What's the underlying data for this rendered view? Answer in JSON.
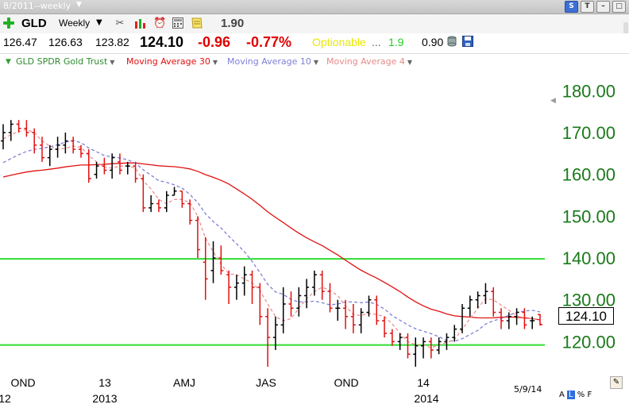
{
  "window": {
    "title": "8/2011--weekly"
  },
  "toolbar": {
    "symbol": "GLD",
    "period": "Weekly",
    "figure": "1.90",
    "icons": [
      "add-icon",
      "scissors-icon",
      "bar-chart-icon",
      "alarm-icon",
      "calculator-icon",
      "note-icon"
    ]
  },
  "window_buttons": {
    "s": "S",
    "t": "T"
  },
  "quote": {
    "open": "126.47",
    "high": "126.63",
    "low": "123.82",
    "last": "124.10",
    "change": "-0.96",
    "change_pct": "-0.77%",
    "optionable": "Optionable",
    "dots": "...",
    "green_value": "1.9",
    "value2": "0.90"
  },
  "legend": {
    "items": [
      {
        "label": "GLD SPDR Gold Trust",
        "color": "#2e8b2e"
      },
      {
        "label": "Moving Average 30",
        "color": "#e01010"
      },
      {
        "label": "Moving Average 10",
        "color": "#7f7fd8"
      },
      {
        "label": "Moving Average 4",
        "color": "#e88a8a"
      }
    ]
  },
  "price_box": "124.10",
  "date_label": "5/9/14",
  "corner_labels": {
    "a": "A",
    "l": "L",
    "pct": "%",
    "f": "F"
  },
  "colors": {
    "up_bar": "#000000",
    "down_bar": "#e01010",
    "ma30": "#e01010",
    "ma10": "#7f7fd8",
    "ma4": "#ee9090",
    "hline": "#33dd33",
    "axis_text": "#1a7a1a"
  },
  "chart_data": {
    "type": "bar",
    "ylim": [
      114,
      185
    ],
    "y_ticks": [
      120,
      130,
      140,
      150,
      160,
      170,
      180
    ],
    "y_tick_labels": [
      "120.00",
      "130.00",
      "140.00",
      "150.00",
      "160.00",
      "170.00",
      "180.00"
    ],
    "x_range": [
      -1,
      86
    ],
    "x_ticks_month": [
      {
        "x": 6,
        "label": "OND"
      },
      {
        "x": 29,
        "label": "13"
      },
      {
        "x": 51,
        "label": "AMJ"
      },
      {
        "x": 73,
        "label": "JAS"
      },
      {
        "x": 95,
        "label": "OND"
      },
      {
        "x": 117,
        "label": "14"
      },
      {
        "x": 139,
        "label": ""
      }
    ],
    "x_ticks_year": [
      {
        "x": 0,
        "label": "12"
      },
      {
        "x": 29,
        "label": "2013"
      },
      {
        "x": 117,
        "label": "2014"
      }
    ],
    "hlines": [
      139.8,
      119.2
    ],
    "bars": [
      [
        0,
        168,
        172,
        166,
        170
      ],
      [
        1,
        170,
        173,
        168,
        172
      ],
      [
        2,
        172,
        173,
        170,
        171
      ],
      [
        3,
        171,
        173,
        169,
        170
      ],
      [
        4,
        170,
        171,
        165,
        167
      ],
      [
        5,
        167,
        169,
        163,
        164
      ],
      [
        6,
        164,
        167,
        162,
        166
      ],
      [
        7,
        166,
        169,
        164,
        167
      ],
      [
        8,
        167,
        170,
        165,
        168
      ],
      [
        9,
        168,
        169,
        165,
        166
      ],
      [
        10,
        166,
        167,
        164,
        165
      ],
      [
        11,
        165,
        166,
        158,
        159
      ],
      [
        12,
        160,
        163,
        159,
        162
      ],
      [
        13,
        162,
        164,
        160,
        161
      ],
      [
        14,
        161,
        165,
        159,
        164
      ],
      [
        15,
        163,
        165,
        160,
        161
      ],
      [
        16,
        162,
        163,
        160,
        162
      ],
      [
        17,
        162,
        163,
        158,
        159
      ],
      [
        18,
        159,
        160,
        151,
        152
      ],
      [
        19,
        152,
        155,
        151,
        153
      ],
      [
        20,
        153,
        154,
        151,
        152
      ],
      [
        21,
        152,
        156,
        151,
        155
      ],
      [
        22,
        155,
        157,
        155,
        156
      ],
      [
        23,
        156,
        156,
        152,
        153
      ],
      [
        24,
        153,
        154,
        148,
        149
      ],
      [
        25,
        149,
        150,
        140,
        142
      ],
      [
        26,
        139,
        145,
        130,
        135
      ],
      [
        27,
        137,
        144,
        134,
        140
      ],
      [
        28,
        140,
        143,
        136,
        137
      ],
      [
        29,
        136,
        137,
        129,
        133
      ],
      [
        30,
        133,
        136,
        130,
        134
      ],
      [
        31,
        134,
        138,
        131,
        136
      ],
      [
        32,
        136,
        137,
        129,
        133
      ],
      [
        33,
        133,
        134,
        124,
        126
      ],
      [
        34,
        126,
        128,
        114,
        121
      ],
      [
        35,
        121,
        126,
        118,
        124
      ],
      [
        36,
        124,
        133,
        122,
        129
      ],
      [
        37,
        129,
        132,
        126,
        128
      ],
      [
        38,
        128,
        133,
        126,
        131
      ],
      [
        39,
        131,
        135,
        128,
        133
      ],
      [
        40,
        133,
        137,
        131,
        136
      ],
      [
        41,
        136,
        137,
        130,
        132
      ],
      [
        42,
        132,
        134,
        127,
        128
      ],
      [
        43,
        128,
        130,
        125,
        128
      ],
      [
        44,
        128,
        130,
        123,
        126
      ],
      [
        45,
        126,
        129,
        122,
        124
      ],
      [
        46,
        124,
        128,
        122,
        127
      ],
      [
        47,
        127,
        131,
        126,
        130
      ],
      [
        48,
        130,
        131,
        124,
        125
      ],
      [
        49,
        125,
        126,
        121,
        122
      ],
      [
        50,
        122,
        123,
        119,
        120
      ],
      [
        51,
        120,
        122,
        118,
        121
      ],
      [
        52,
        121,
        122,
        116,
        117
      ],
      [
        53,
        117,
        121,
        114,
        119
      ],
      [
        54,
        119,
        121,
        116,
        120
      ],
      [
        55,
        120,
        121,
        116,
        118
      ],
      [
        56,
        118,
        121,
        117,
        120
      ],
      [
        57,
        120,
        122,
        118,
        121
      ],
      [
        58,
        121,
        124,
        120,
        123
      ],
      [
        59,
        123,
        129,
        122,
        128
      ],
      [
        60,
        128,
        131,
        126,
        130
      ],
      [
        61,
        130,
        132,
        128,
        131
      ],
      [
        62,
        131,
        134,
        129,
        132
      ],
      [
        63,
        132,
        133,
        126,
        127
      ],
      [
        64,
        127,
        128,
        123,
        125
      ],
      [
        65,
        125,
        127,
        123,
        126
      ],
      [
        66,
        126,
        128,
        124,
        127
      ],
      [
        67,
        127,
        128,
        123,
        124
      ],
      [
        68,
        125,
        126,
        123,
        125
      ],
      [
        69,
        126.47,
        126.63,
        123.82,
        124.1
      ]
    ]
  }
}
